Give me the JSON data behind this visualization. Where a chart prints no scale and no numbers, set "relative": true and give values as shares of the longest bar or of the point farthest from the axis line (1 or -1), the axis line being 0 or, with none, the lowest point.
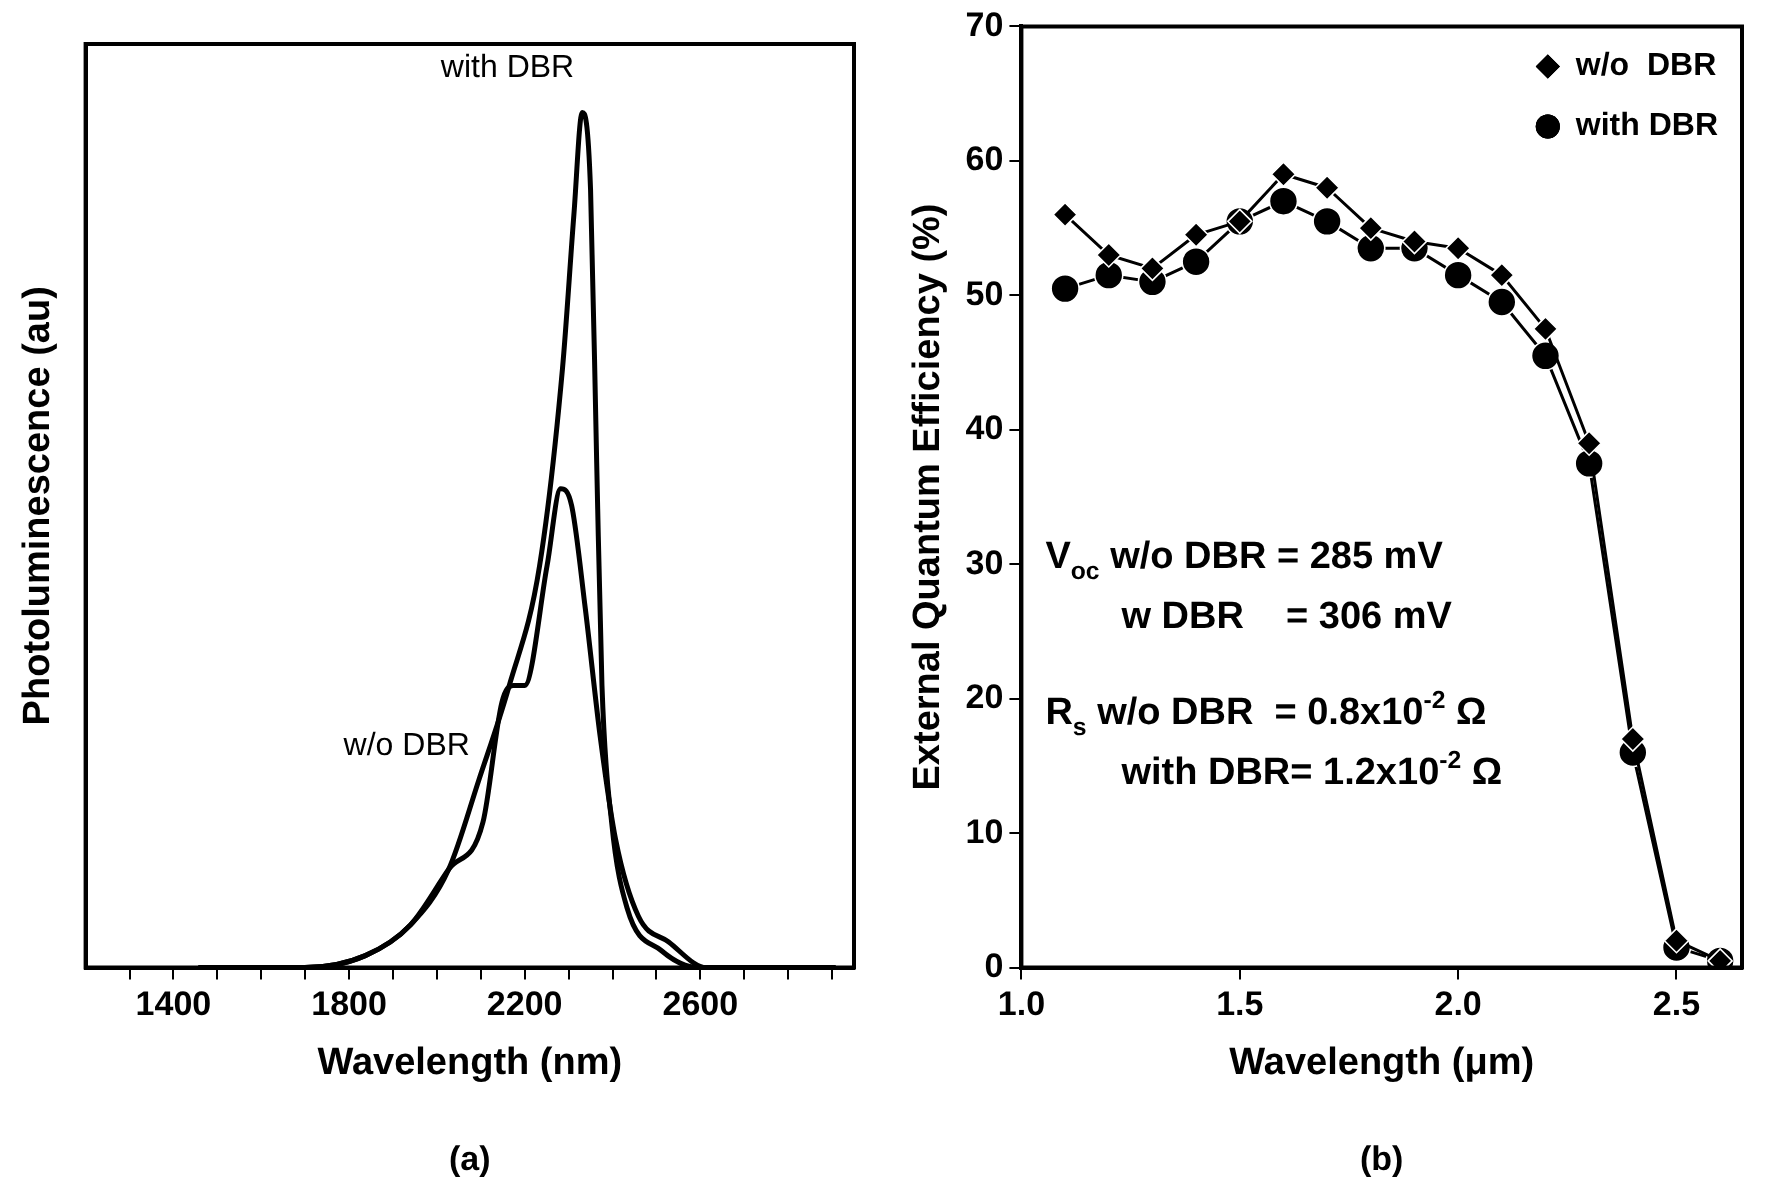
{
  "chart_data": [
    {
      "type": "line",
      "xlabel": "Wavelength (nm)",
      "ylabel": "Photoluminescence (au)",
      "relative": true,
      "legend": false,
      "grid": false,
      "marker": "none",
      "xlim": [
        1200,
        2950
      ],
      "xticks": [
        {
          "value": 1300,
          "label": null
        },
        1400,
        {
          "value": 1500,
          "label": null
        },
        {
          "value": 1600,
          "label": null
        },
        {
          "value": 1700,
          "label": null
        },
        1800,
        {
          "value": 1900,
          "label": null
        },
        {
          "value": 2000,
          "label": null
        },
        {
          "value": 2100,
          "label": null
        },
        2200,
        {
          "value": 2300,
          "label": null
        },
        {
          "value": 2400,
          "label": null
        },
        {
          "value": 2500,
          "label": null
        },
        2600,
        {
          "value": 2700,
          "label": null
        },
        {
          "value": 2800,
          "label": null
        },
        {
          "value": 2900,
          "label": null
        }
      ],
      "series": [
        {
          "name": "with DBR",
          "color": "#000000",
          "x": [
            1457,
            1699,
            1837,
            1940,
            2027,
            2096,
            2165,
            2234,
            2286,
            2312,
            2331,
            2350,
            2364,
            2376,
            2398,
            2433,
            2511,
            2596,
            2908
          ],
          "values": [
            0,
            0,
            0.014,
            0.05,
            0.115,
            0.22,
            0.33,
            0.47,
            0.7,
            0.88,
            1,
            0.91,
            0.59,
            0.33,
            0.17,
            0.07,
            0.02,
            0,
            0
          ]
        },
        {
          "name": "w/o DBR",
          "color": "#000000",
          "x": [
            1457,
            1699,
            1837,
            1940,
            2027,
            2105,
            2148,
            2174,
            2200,
            2251,
            2282,
            2307,
            2338,
            2372,
            2407,
            2459,
            2528,
            2614,
            2908
          ],
          "values": [
            0,
            0,
            0.014,
            0.05,
            0.115,
            0.17,
            0.31,
            0.33,
            0.33,
            0.47,
            0.56,
            0.54,
            0.42,
            0.27,
            0.15,
            0.06,
            0.03,
            0,
            0
          ]
        }
      ],
      "annotations": [
        "(a)"
      ]
    },
    {
      "type": "line",
      "xlabel": "Wavelength (μm)",
      "ylabel": "External Quantum Efficiency (%)",
      "legend": "top right",
      "grid": false,
      "x": [
        1.1,
        1.2,
        1.3,
        1.4,
        1.5,
        1.6,
        1.7,
        1.8,
        1.9,
        2.0,
        2.1,
        2.2,
        2.3,
        2.4,
        2.5,
        2.6
      ],
      "xlim": [
        1.0,
        2.65
      ],
      "xticks": [
        {
          "value": 1.0,
          "label": "1.0"
        },
        1.5,
        {
          "value": 2.0,
          "label": "2.0"
        },
        2.5
      ],
      "ylim": [
        0,
        70
      ],
      "yticks": [
        0,
        10,
        20,
        30,
        40,
        50,
        60,
        70
      ],
      "series": [
        {
          "name": "w/o  DBR",
          "color": "#000000",
          "marker": "diamond",
          "values": [
            56,
            53,
            52,
            54.5,
            55.5,
            59,
            58,
            55,
            54,
            53.5,
            51.5,
            47.5,
            39,
            17,
            2,
            0.5
          ]
        },
        {
          "name": "with DBR",
          "color": "#000000",
          "marker": "circle",
          "values": [
            50.5,
            51.5,
            51,
            52.5,
            55.5,
            57,
            55.5,
            53.5,
            53.5,
            51.5,
            49.5,
            45.5,
            37.5,
            16,
            1.5,
            0.5
          ]
        }
      ],
      "annotations": [
        "V$_{oc}$ w/o DBR = 285 mV",
        "w DBR    = 306 mV",
        "R$_{s}$ w/o DBR  = 0.8x10$^{-2}$ Ω",
        "with DBR= 1.2x10$^{-2}$ Ω",
        "(b)"
      ]
    }
  ]
}
